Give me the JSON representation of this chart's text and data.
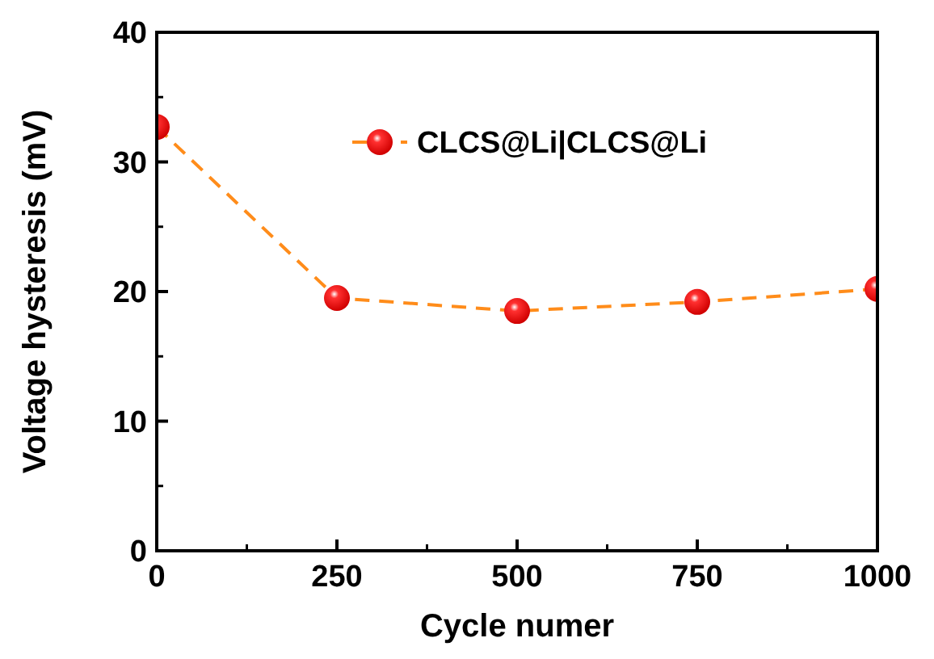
{
  "chart_data": {
    "type": "line",
    "xlabel": "Cycle numer",
    "ylabel": "Voltage hysteresis (mV)",
    "x": [
      0,
      250,
      500,
      750,
      1000
    ],
    "series": [
      {
        "name": "CLCS@Li|CLCS@Li",
        "color": "#ff8c1a",
        "values": [
          32.7,
          19.5,
          18.5,
          19.2,
          20.2
        ]
      }
    ],
    "xlim": [
      0,
      1000
    ],
    "xticks": [
      0,
      250,
      500,
      750,
      1000
    ],
    "ylim": [
      0,
      40
    ],
    "yticks": [
      0,
      10,
      20,
      30,
      40
    ],
    "marker": "circle",
    "line_style": "dashed",
    "legend": "top right",
    "grid": false
  }
}
